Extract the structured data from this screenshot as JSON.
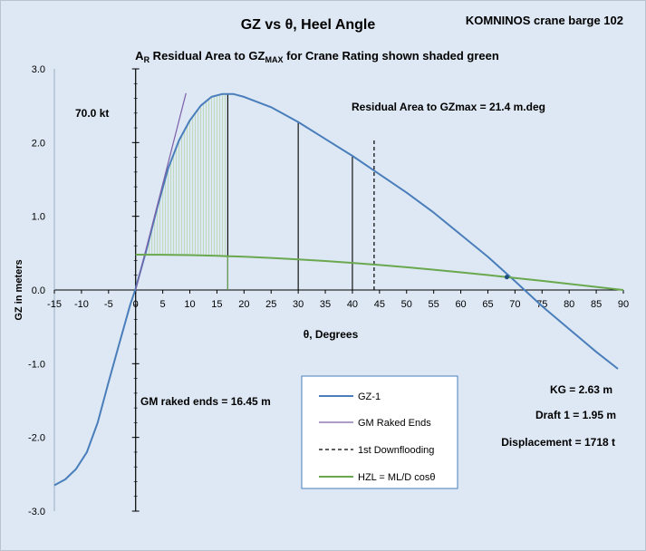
{
  "chart_data": {
    "type": "line",
    "title": "GZ vs θ, Heel Angle",
    "corner_label": "KOMNINOS  crane barge 102",
    "subtitle": {
      "prefix": "A",
      "prefix_sub": "R",
      "middle": " Residual Area to GZ",
      "middle_sub": "MAX",
      "suffix": " for Crane Rating shown shaded green"
    },
    "xlabel": "θ, Degrees",
    "ylabel": "GZ in meters",
    "xlim": [
      -15,
      90
    ],
    "ylim": [
      -3.0,
      3.0
    ],
    "x_ticks": [
      -15,
      -10,
      -5,
      0,
      5,
      10,
      15,
      20,
      25,
      30,
      35,
      40,
      45,
      50,
      55,
      60,
      65,
      70,
      75,
      80,
      85,
      90
    ],
    "y_ticks": [
      {
        "value": 3.0,
        "label": "3.0"
      },
      {
        "value": 2.0,
        "label": "2.0"
      },
      {
        "value": 1.0,
        "label": "1.0"
      },
      {
        "value": 0.0,
        "label": "0.0"
      },
      {
        "value": -1.0,
        "label": "-1.0"
      },
      {
        "value": -2.0,
        "label": "-2.0"
      },
      {
        "value": -3.0,
        "label": "-3.0"
      }
    ],
    "grid": false,
    "legend_position": "bottom-center",
    "colors": {
      "gz": "#4a7ebb",
      "gm": "#7c5fa8",
      "flood": "#000000",
      "hzl": "#6aa84f",
      "shade": "#b6d7a8",
      "axis": "#000000",
      "background": "#dde8f4"
    },
    "series": [
      {
        "name": "GZ-1",
        "style": "solid",
        "x": [
          -15,
          -13,
          -11,
          -9,
          -7,
          -5,
          -3,
          -1,
          0,
          2,
          4,
          6,
          8,
          10,
          12,
          14,
          16,
          18,
          20,
          25,
          30,
          35,
          40,
          45,
          50,
          55,
          60,
          65,
          70,
          75,
          80,
          85,
          89
        ],
        "y": [
          -2.65,
          -2.57,
          -2.43,
          -2.2,
          -1.8,
          -1.25,
          -0.72,
          -0.2,
          0.02,
          0.55,
          1.12,
          1.65,
          2.03,
          2.3,
          2.5,
          2.62,
          2.66,
          2.66,
          2.62,
          2.48,
          2.28,
          2.05,
          1.82,
          1.57,
          1.32,
          1.05,
          0.75,
          0.45,
          0.12,
          -0.22,
          -0.53,
          -0.84,
          -1.07
        ]
      },
      {
        "name": "GM Raked Ends",
        "style": "solid",
        "x": [
          0,
          9.3
        ],
        "y": [
          0,
          2.67
        ]
      },
      {
        "name": "1st Downflooding",
        "style": "dashed",
        "x": [
          44,
          44
        ],
        "y": [
          0,
          2.05
        ]
      },
      {
        "name": "HZL = ML/D cosθ",
        "style": "solid",
        "x": [
          0,
          5,
          10,
          15,
          20,
          25,
          30,
          35,
          40,
          45,
          50,
          55,
          60,
          65,
          70,
          75,
          80,
          85,
          90
        ],
        "y": [
          0.48,
          0.478,
          0.473,
          0.464,
          0.451,
          0.435,
          0.416,
          0.393,
          0.368,
          0.339,
          0.309,
          0.275,
          0.24,
          0.203,
          0.164,
          0.124,
          0.083,
          0.042,
          0.0
        ]
      }
    ],
    "vertical_markers": [
      {
        "x": 17,
        "y_top": 2.66,
        "color": "#000000"
      },
      {
        "x": 30,
        "y_top": 2.28,
        "color": "#000000"
      },
      {
        "x": 40,
        "y_top": 1.82,
        "color": "#000000"
      },
      {
        "x": 17,
        "y_top": 0.46,
        "color": "#6aa84f"
      }
    ],
    "shaded_region": {
      "description_label": "A_R residual area",
      "x_from": 1.5,
      "x_to": 17,
      "lower_series": "HZL = ML/D cosθ",
      "upper_series": "GZ-1"
    },
    "annotations": {
      "wind": "70.0 kt",
      "residual_area": "Residual Area to GZmax = 21.4 m.deg",
      "gm": "GM raked ends = 16.45 m",
      "kg": "KG = 2.63 m",
      "draft": "Draft 1 = 1.95 m",
      "displacement": "Displacement = 1718 t"
    }
  }
}
